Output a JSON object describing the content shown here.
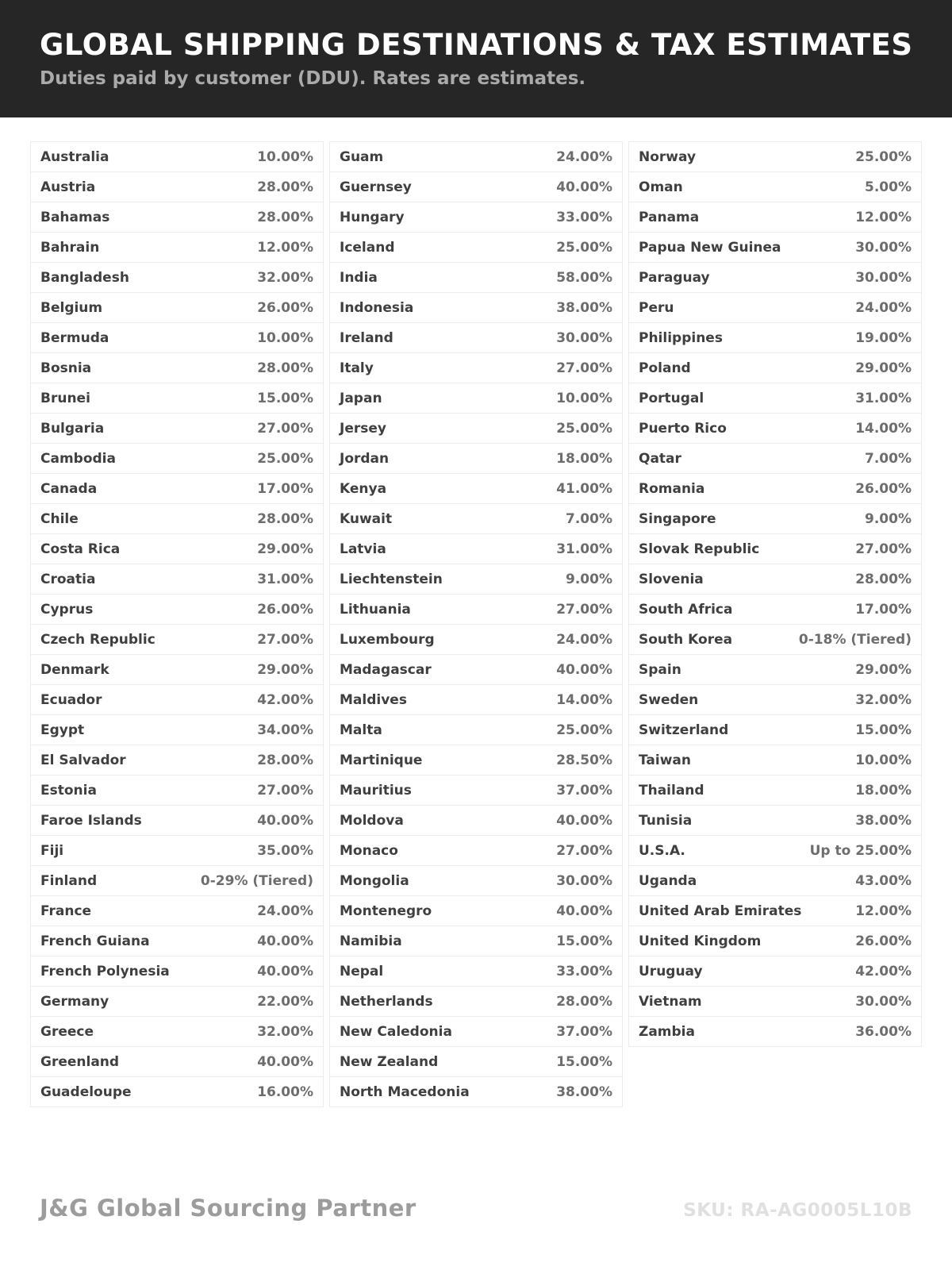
{
  "header": {
    "title": "GLOBAL SHIPPING DESTINATIONS & TAX ESTIMATES",
    "subtitle": "Duties paid by customer (DDU). Rates are estimates."
  },
  "colors": {
    "header_bg": "#262626",
    "title_text": "#ffffff",
    "subtitle_text": "#aaaaaa",
    "row_border": "#ececec",
    "country_text": "#3f3f3f",
    "rate_text": "#6d6d6d",
    "brand_text": "#9c9c9c",
    "sku_text": "#e0e0e0"
  },
  "table": {
    "columns": [
      {
        "entries": [
          {
            "country": "Australia",
            "rate": "10.00%"
          },
          {
            "country": "Austria",
            "rate": "28.00%"
          },
          {
            "country": "Bahamas",
            "rate": "28.00%"
          },
          {
            "country": "Bahrain",
            "rate": "12.00%"
          },
          {
            "country": "Bangladesh",
            "rate": "32.00%"
          },
          {
            "country": "Belgium",
            "rate": "26.00%"
          },
          {
            "country": "Bermuda",
            "rate": "10.00%"
          },
          {
            "country": "Bosnia",
            "rate": "28.00%"
          },
          {
            "country": "Brunei",
            "rate": "15.00%"
          },
          {
            "country": "Bulgaria",
            "rate": "27.00%"
          },
          {
            "country": "Cambodia",
            "rate": "25.00%"
          },
          {
            "country": "Canada",
            "rate": "17.00%"
          },
          {
            "country": "Chile",
            "rate": "28.00%"
          },
          {
            "country": "Costa Rica",
            "rate": "29.00%"
          },
          {
            "country": "Croatia",
            "rate": "31.00%"
          },
          {
            "country": "Cyprus",
            "rate": "26.00%"
          },
          {
            "country": "Czech Republic",
            "rate": "27.00%"
          },
          {
            "country": "Denmark",
            "rate": "29.00%"
          },
          {
            "country": "Ecuador",
            "rate": "42.00%"
          },
          {
            "country": "Egypt",
            "rate": "34.00%"
          },
          {
            "country": "El Salvador",
            "rate": "28.00%"
          },
          {
            "country": "Estonia",
            "rate": "27.00%"
          },
          {
            "country": "Faroe Islands",
            "rate": "40.00%"
          },
          {
            "country": "Fiji",
            "rate": "35.00%"
          },
          {
            "country": "Finland",
            "rate": "0-29% (Tiered)"
          },
          {
            "country": "France",
            "rate": "24.00%"
          },
          {
            "country": "French Guiana",
            "rate": "40.00%"
          },
          {
            "country": "French Polynesia",
            "rate": "40.00%"
          },
          {
            "country": "Germany",
            "rate": "22.00%"
          },
          {
            "country": "Greece",
            "rate": "32.00%"
          },
          {
            "country": "Greenland",
            "rate": "40.00%"
          },
          {
            "country": "Guadeloupe",
            "rate": "16.00%"
          }
        ]
      },
      {
        "entries": [
          {
            "country": "Guam",
            "rate": "24.00%"
          },
          {
            "country": "Guernsey",
            "rate": "40.00%"
          },
          {
            "country": "Hungary",
            "rate": "33.00%"
          },
          {
            "country": "Iceland",
            "rate": "25.00%"
          },
          {
            "country": "India",
            "rate": "58.00%"
          },
          {
            "country": "Indonesia",
            "rate": "38.00%"
          },
          {
            "country": "Ireland",
            "rate": "30.00%"
          },
          {
            "country": "Italy",
            "rate": "27.00%"
          },
          {
            "country": "Japan",
            "rate": "10.00%"
          },
          {
            "country": "Jersey",
            "rate": "25.00%"
          },
          {
            "country": "Jordan",
            "rate": "18.00%"
          },
          {
            "country": "Kenya",
            "rate": "41.00%"
          },
          {
            "country": "Kuwait",
            "rate": "7.00%"
          },
          {
            "country": "Latvia",
            "rate": "31.00%"
          },
          {
            "country": "Liechtenstein",
            "rate": "9.00%"
          },
          {
            "country": "Lithuania",
            "rate": "27.00%"
          },
          {
            "country": "Luxembourg",
            "rate": "24.00%"
          },
          {
            "country": "Madagascar",
            "rate": "40.00%"
          },
          {
            "country": "Maldives",
            "rate": "14.00%"
          },
          {
            "country": "Malta",
            "rate": "25.00%"
          },
          {
            "country": "Martinique",
            "rate": "28.50%"
          },
          {
            "country": "Mauritius",
            "rate": "37.00%"
          },
          {
            "country": "Moldova",
            "rate": "40.00%"
          },
          {
            "country": "Monaco",
            "rate": "27.00%"
          },
          {
            "country": "Mongolia",
            "rate": "30.00%"
          },
          {
            "country": "Montenegro",
            "rate": "40.00%"
          },
          {
            "country": "Namibia",
            "rate": "15.00%"
          },
          {
            "country": "Nepal",
            "rate": "33.00%"
          },
          {
            "country": "Netherlands",
            "rate": "28.00%"
          },
          {
            "country": "New Caledonia",
            "rate": "37.00%"
          },
          {
            "country": "New Zealand",
            "rate": "15.00%"
          },
          {
            "country": "North Macedonia",
            "rate": "38.00%"
          }
        ]
      },
      {
        "entries": [
          {
            "country": "Norway",
            "rate": "25.00%"
          },
          {
            "country": "Oman",
            "rate": "5.00%"
          },
          {
            "country": "Panama",
            "rate": "12.00%"
          },
          {
            "country": "Papua New Guinea",
            "rate": "30.00%"
          },
          {
            "country": "Paraguay",
            "rate": "30.00%"
          },
          {
            "country": "Peru",
            "rate": "24.00%"
          },
          {
            "country": "Philippines",
            "rate": "19.00%"
          },
          {
            "country": "Poland",
            "rate": "29.00%"
          },
          {
            "country": "Portugal",
            "rate": "31.00%"
          },
          {
            "country": "Puerto Rico",
            "rate": "14.00%"
          },
          {
            "country": "Qatar",
            "rate": "7.00%"
          },
          {
            "country": "Romania",
            "rate": "26.00%"
          },
          {
            "country": "Singapore",
            "rate": "9.00%"
          },
          {
            "country": "Slovak Republic",
            "rate": "27.00%"
          },
          {
            "country": "Slovenia",
            "rate": "28.00%"
          },
          {
            "country": "South Africa",
            "rate": "17.00%"
          },
          {
            "country": "South Korea",
            "rate": "0-18% (Tiered)"
          },
          {
            "country": "Spain",
            "rate": "29.00%"
          },
          {
            "country": "Sweden",
            "rate": "32.00%"
          },
          {
            "country": "Switzerland",
            "rate": "15.00%"
          },
          {
            "country": "Taiwan",
            "rate": "10.00%"
          },
          {
            "country": "Thailand",
            "rate": "18.00%"
          },
          {
            "country": "Tunisia",
            "rate": "38.00%"
          },
          {
            "country": "U.S.A.",
            "rate": "Up to 25.00%"
          },
          {
            "country": "Uganda",
            "rate": "43.00%"
          },
          {
            "country": "United Arab Emirates",
            "rate": "12.00%"
          },
          {
            "country": "United Kingdom",
            "rate": "26.00%"
          },
          {
            "country": "Uruguay",
            "rate": "42.00%"
          },
          {
            "country": "Vietnam",
            "rate": "30.00%"
          },
          {
            "country": "Zambia",
            "rate": "36.00%"
          }
        ]
      }
    ]
  },
  "footer": {
    "brand": "J&G Global Sourcing Partner",
    "sku": "SKU: RA-AG0005L10B"
  }
}
